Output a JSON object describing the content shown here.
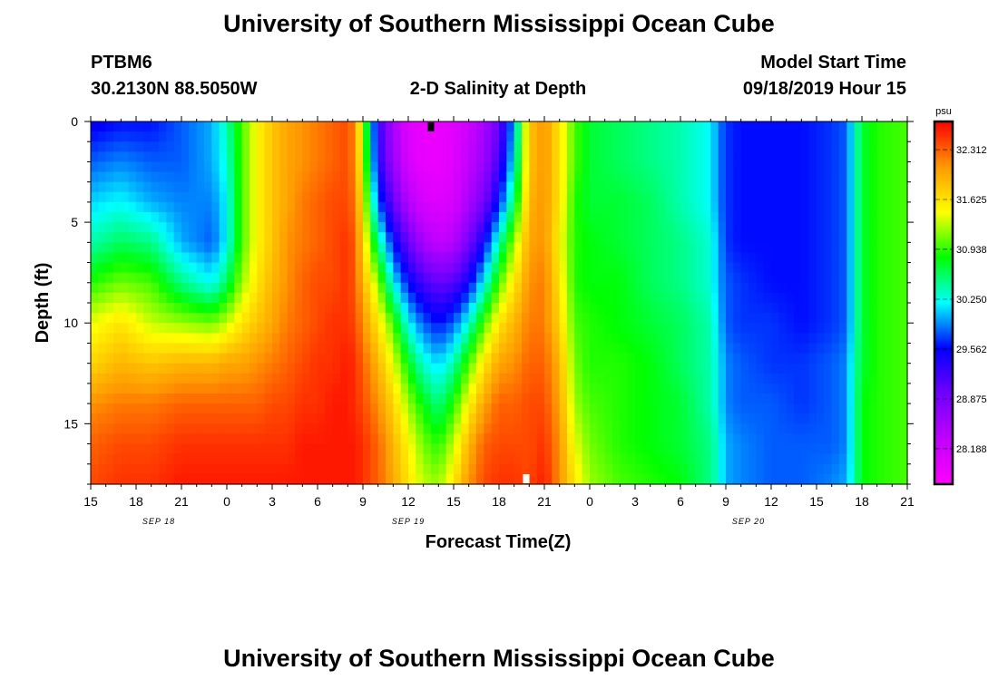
{
  "figure": {
    "title_top": "University of Southern Mississippi Ocean Cube",
    "title_bottom": "University of Southern Mississippi Ocean Cube",
    "station_id": "PTBM6",
    "station_location": "30.2130N 88.5050W",
    "plot_title": "2-D Salinity at Depth",
    "model_start_label": "Model Start Time",
    "model_start_value": "09/18/2019 Hour 15"
  },
  "chart_data": {
    "type": "heatmap",
    "title": "2-D Salinity at Depth",
    "xlabel": "Forecast Time(Z)",
    "ylabel": "Depth (ft)",
    "x_unit": "hours since 09/18/2019 15Z",
    "xlim": [
      0,
      54
    ],
    "ylim": [
      0,
      18
    ],
    "y_inverted": true,
    "x_ticks": [
      {
        "h": 0,
        "label": "15"
      },
      {
        "h": 3,
        "label": "18"
      },
      {
        "h": 6,
        "label": "21"
      },
      {
        "h": 9,
        "label": "0"
      },
      {
        "h": 12,
        "label": "3"
      },
      {
        "h": 15,
        "label": "6"
      },
      {
        "h": 18,
        "label": "9"
      },
      {
        "h": 21,
        "label": "12"
      },
      {
        "h": 24,
        "label": "15"
      },
      {
        "h": 27,
        "label": "18"
      },
      {
        "h": 30,
        "label": "21"
      },
      {
        "h": 33,
        "label": "0"
      },
      {
        "h": 36,
        "label": "3"
      },
      {
        "h": 39,
        "label": "6"
      },
      {
        "h": 42,
        "label": "9"
      },
      {
        "h": 45,
        "label": "12"
      },
      {
        "h": 48,
        "label": "15"
      },
      {
        "h": 51,
        "label": "18"
      },
      {
        "h": 54,
        "label": "21"
      }
    ],
    "date_labels": [
      {
        "h": 4.5,
        "label": "SEP 18"
      },
      {
        "h": 21,
        "label": "SEP 19"
      },
      {
        "h": 43.5,
        "label": "SEP 20"
      }
    ],
    "y_ticks": [
      {
        "d": 0,
        "label": "0"
      },
      {
        "d": 5,
        "label": "5"
      },
      {
        "d": 10,
        "label": "10"
      },
      {
        "d": 15,
        "label": "15"
      }
    ],
    "colorbar": {
      "unit": "psu",
      "min": 27.7,
      "max": 32.7,
      "ticks": [
        "32.312",
        "31.625",
        "30.938",
        "30.250",
        "29.562",
        "28.875",
        "28.188"
      ]
    },
    "depth_levels": [
      0,
      2,
      4,
      6,
      8,
      10,
      12,
      14,
      16,
      18
    ],
    "time_nodes": [
      0,
      2,
      4,
      6,
      8,
      9,
      10,
      11,
      12,
      13,
      14,
      15,
      16,
      17,
      17.5,
      18,
      19,
      20,
      21,
      22,
      23,
      24,
      25,
      26,
      27,
      28,
      29,
      30,
      31,
      32,
      33,
      35,
      37,
      39,
      41,
      41.5,
      42,
      43,
      45,
      47,
      49,
      50,
      50.5,
      51,
      52,
      54
    ],
    "profiles": [
      [
        29.5,
        29.8,
        30.1,
        30.4,
        30.9,
        31.4,
        31.7,
        32.1,
        32.3,
        32.4
      ],
      [
        29.6,
        29.9,
        30.2,
        30.6,
        31.1,
        31.6,
        31.9,
        32.2,
        32.4,
        32.5
      ],
      [
        29.6,
        29.8,
        30.0,
        30.5,
        31.0,
        31.3,
        31.8,
        32.2,
        32.4,
        32.5
      ],
      [
        29.8,
        29.8,
        29.9,
        30.0,
        30.5,
        31.2,
        31.9,
        32.3,
        32.5,
        32.6
      ],
      [
        30.0,
        30.0,
        29.9,
        29.8,
        30.2,
        31.1,
        31.9,
        32.3,
        32.5,
        32.6
      ],
      [
        30.4,
        30.3,
        30.2,
        30.2,
        30.6,
        31.3,
        32.0,
        32.3,
        32.5,
        32.6
      ],
      [
        31.0,
        31.0,
        31.0,
        31.0,
        31.2,
        31.6,
        32.0,
        32.3,
        32.5,
        32.6
      ],
      [
        31.5,
        31.5,
        31.5,
        31.5,
        31.6,
        31.8,
        32.1,
        32.3,
        32.5,
        32.6
      ],
      [
        31.8,
        31.8,
        31.8,
        31.8,
        31.9,
        32.0,
        32.2,
        32.4,
        32.5,
        32.6
      ],
      [
        32.0,
        32.0,
        32.0,
        32.1,
        32.1,
        32.2,
        32.3,
        32.4,
        32.5,
        32.6
      ],
      [
        32.1,
        32.1,
        32.2,
        32.2,
        32.3,
        32.3,
        32.4,
        32.5,
        32.6,
        32.6
      ],
      [
        32.2,
        32.2,
        32.3,
        32.3,
        32.4,
        32.4,
        32.5,
        32.5,
        32.6,
        32.6
      ],
      [
        32.3,
        32.3,
        32.4,
        32.4,
        32.4,
        32.5,
        32.5,
        32.6,
        32.6,
        32.6
      ],
      [
        32.4,
        32.4,
        32.4,
        32.5,
        32.5,
        32.5,
        32.6,
        32.6,
        32.6,
        32.6
      ],
      [
        32.1,
        32.1,
        32.2,
        32.3,
        32.3,
        32.4,
        32.5,
        32.5,
        32.6,
        32.6
      ],
      [
        31.2,
        31.3,
        31.5,
        31.7,
        31.9,
        32.1,
        32.3,
        32.4,
        32.5,
        32.5
      ],
      [
        29.3,
        29.4,
        29.8,
        30.5,
        31.2,
        31.6,
        31.9,
        32.1,
        32.3,
        32.3
      ],
      [
        28.5,
        28.6,
        29.0,
        29.6,
        30.2,
        31.0,
        31.4,
        31.7,
        31.9,
        32.0
      ],
      [
        28.0,
        28.1,
        28.4,
        29.0,
        29.6,
        30.2,
        30.8,
        31.2,
        31.5,
        31.6
      ],
      [
        27.9,
        27.9,
        28.1,
        28.5,
        29.2,
        29.8,
        30.3,
        30.8,
        31.1,
        31.3
      ],
      [
        27.9,
        27.9,
        28.0,
        28.3,
        29.0,
        29.6,
        30.1,
        30.5,
        30.9,
        31.2
      ],
      [
        28.0,
        28.0,
        28.1,
        28.4,
        29.1,
        29.8,
        30.4,
        30.9,
        31.3,
        31.6
      ],
      [
        28.2,
        28.3,
        28.5,
        28.9,
        29.5,
        30.3,
        31.0,
        31.5,
        31.9,
        32.1
      ],
      [
        28.5,
        28.6,
        28.9,
        29.5,
        30.2,
        31.0,
        31.6,
        32.0,
        32.3,
        32.4
      ],
      [
        29.0,
        29.2,
        29.6,
        30.4,
        31.0,
        31.6,
        32.0,
        32.3,
        32.4,
        32.5
      ],
      [
        30.0,
        30.2,
        30.6,
        31.2,
        31.6,
        31.9,
        32.1,
        32.3,
        32.4,
        32.5
      ],
      [
        31.8,
        31.8,
        31.9,
        32.0,
        32.1,
        32.2,
        32.3,
        32.4,
        32.4,
        32.4
      ],
      [
        32.1,
        32.1,
        32.1,
        32.1,
        32.2,
        32.2,
        32.3,
        32.4,
        32.5,
        32.6
      ],
      [
        31.6,
        31.6,
        31.6,
        31.5,
        31.6,
        31.7,
        31.9,
        32.0,
        32.1,
        32.1
      ],
      [
        31.0,
        31.0,
        30.9,
        30.9,
        30.9,
        31.0,
        31.1,
        31.2,
        31.4,
        31.6
      ],
      [
        30.7,
        30.7,
        30.7,
        30.8,
        30.8,
        30.9,
        30.9,
        31.0,
        31.1,
        31.2
      ],
      [
        30.6,
        30.6,
        30.7,
        30.7,
        30.8,
        30.8,
        30.9,
        30.9,
        30.9,
        31.0
      ],
      [
        30.5,
        30.5,
        30.6,
        30.6,
        30.6,
        30.7,
        30.8,
        30.8,
        30.8,
        30.9
      ],
      [
        30.4,
        30.4,
        30.4,
        30.5,
        30.5,
        30.6,
        30.6,
        30.7,
        30.7,
        30.8
      ],
      [
        30.2,
        30.2,
        30.2,
        30.3,
        30.3,
        30.4,
        30.4,
        30.4,
        30.5,
        30.5
      ],
      [
        29.9,
        29.9,
        29.9,
        30.0,
        30.0,
        30.1,
        30.2,
        30.2,
        30.3,
        30.3
      ],
      [
        29.7,
        29.7,
        29.7,
        29.7,
        29.8,
        29.8,
        29.9,
        29.9,
        30.0,
        30.0
      ],
      [
        29.6,
        29.6,
        29.6,
        29.6,
        29.7,
        29.7,
        29.8,
        29.8,
        29.9,
        29.9
      ],
      [
        29.6,
        29.6,
        29.6,
        29.6,
        29.6,
        29.7,
        29.7,
        29.8,
        29.8,
        29.8
      ],
      [
        29.6,
        29.6,
        29.6,
        29.6,
        29.6,
        29.6,
        29.7,
        29.7,
        29.8,
        29.8
      ],
      [
        29.7,
        29.7,
        29.7,
        29.7,
        29.7,
        29.7,
        29.8,
        29.8,
        29.8,
        29.9
      ],
      [
        29.8,
        29.8,
        29.8,
        29.8,
        29.8,
        29.8,
        29.9,
        29.9,
        29.9,
        30.0
      ],
      [
        30.3,
        30.3,
        30.3,
        30.3,
        30.3,
        30.3,
        30.4,
        30.4,
        30.4,
        30.4
      ],
      [
        30.7,
        30.7,
        30.7,
        30.7,
        30.7,
        30.7,
        30.7,
        30.8,
        30.8,
        30.8
      ],
      [
        30.9,
        30.9,
        30.9,
        30.9,
        30.9,
        30.9,
        30.9,
        30.9,
        30.9,
        30.9
      ],
      [
        31.0,
        31.0,
        31.0,
        31.0,
        31.0,
        31.0,
        31.0,
        31.0,
        31.0,
        31.0
      ]
    ],
    "markers": [
      {
        "h": 22.5,
        "edge": "top",
        "color": "#000000"
      },
      {
        "h": 28.8,
        "edge": "bottom",
        "color": "#ffffff"
      }
    ]
  }
}
